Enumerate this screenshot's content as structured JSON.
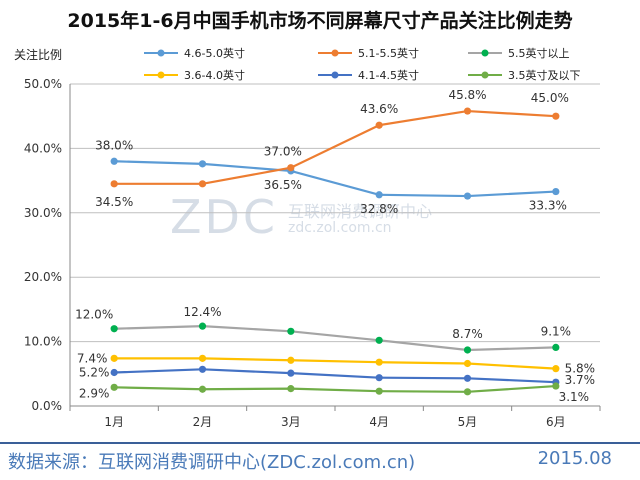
{
  "chart_data": {
    "type": "line",
    "title": "2015年1-6月中国手机市场不同屏幕尺寸产品关注比例走势",
    "ylabel": "关注比例",
    "xlabel": "",
    "categories": [
      "1月",
      "2月",
      "3月",
      "4月",
      "5月",
      "6月"
    ],
    "ylim": [
      0,
      50
    ],
    "yticks": [
      "0.0%",
      "10.0%",
      "20.0%",
      "30.0%",
      "40.0%",
      "50.0%"
    ],
    "grid": true,
    "legend_position": "top",
    "series": [
      {
        "name": "4.6-5.0英寸",
        "color": "#5b9bd5",
        "values": [
          38.0,
          37.6,
          36.5,
          32.8,
          32.6,
          33.3
        ]
      },
      {
        "name": "5.1-5.5英寸",
        "color": "#ed7d31",
        "values": [
          34.5,
          34.5,
          37.0,
          43.6,
          45.8,
          45.0
        ]
      },
      {
        "name": "5.5英寸以上",
        "color": "#a5a5a5",
        "marker_color": "#00b050",
        "values": [
          12.0,
          12.4,
          11.6,
          10.2,
          8.7,
          9.1
        ]
      },
      {
        "name": "3.6-4.0英寸",
        "color": "#ffc000",
        "values": [
          7.4,
          7.4,
          7.1,
          6.8,
          6.6,
          5.8
        ]
      },
      {
        "name": "4.1-4.5英寸",
        "color": "#4472c4",
        "values": [
          5.2,
          5.7,
          5.1,
          4.4,
          4.3,
          3.7
        ]
      },
      {
        "name": "3.5英寸及以下",
        "color": "#70ad47",
        "values": [
          2.9,
          2.6,
          2.7,
          2.3,
          2.2,
          3.1
        ]
      }
    ],
    "annotations": [
      {
        "series": 0,
        "index": 0,
        "text": "38.0%"
      },
      {
        "series": 0,
        "index": 2,
        "text": "36.5%"
      },
      {
        "series": 0,
        "index": 3,
        "text": "32.8%"
      },
      {
        "series": 0,
        "index": 5,
        "text": "33.3%"
      },
      {
        "series": 1,
        "index": 0,
        "text": "34.5%"
      },
      {
        "series": 1,
        "index": 2,
        "text": "37.0%"
      },
      {
        "series": 1,
        "index": 3,
        "text": "43.6%"
      },
      {
        "series": 1,
        "index": 4,
        "text": "45.8%"
      },
      {
        "series": 1,
        "index": 5,
        "text": "45.0%"
      },
      {
        "series": 2,
        "index": 0,
        "text": "12.0%"
      },
      {
        "series": 2,
        "index": 1,
        "text": "12.4%"
      },
      {
        "series": 2,
        "index": 4,
        "text": "8.7%"
      },
      {
        "series": 2,
        "index": 5,
        "text": "9.1%"
      },
      {
        "series": 3,
        "index": 0,
        "text": "7.4%"
      },
      {
        "series": 3,
        "index": 5,
        "text": "5.8%"
      },
      {
        "series": 4,
        "index": 0,
        "text": "5.2%"
      },
      {
        "series": 4,
        "index": 5,
        "text": "3.7%"
      },
      {
        "series": 5,
        "index": 0,
        "text": "2.9%"
      },
      {
        "series": 5,
        "index": 5,
        "text": "3.1%"
      }
    ]
  },
  "watermark": {
    "logo": "ZDC",
    "cn": "互联网消费调研中心",
    "url": "zdc.zol.com.cn"
  },
  "footer": {
    "source": "数据来源：互联网消费调研中心(ZDC.zol.com.cn)",
    "date": "2015.08"
  }
}
